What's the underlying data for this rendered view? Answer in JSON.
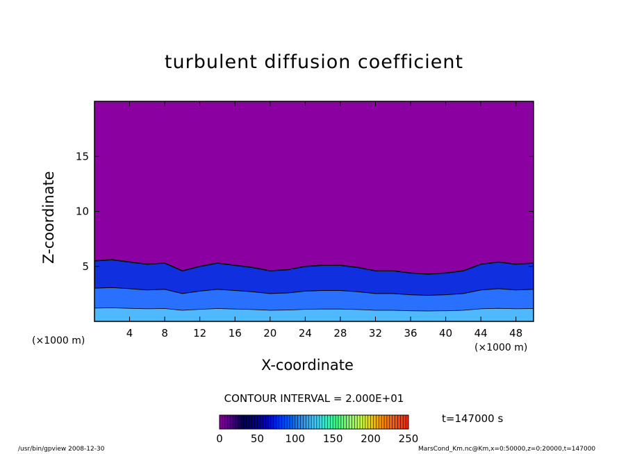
{
  "chart_data": {
    "type": "heatmap",
    "title": "turbulent diffusion coefficient",
    "xlabel": "X-coordinate",
    "ylabel": "Z-coordinate",
    "xunit": "(×1000 m)",
    "xlim": [
      0,
      50
    ],
    "ylim": [
      0,
      20
    ],
    "xticks": [
      4,
      8,
      12,
      16,
      20,
      24,
      28,
      32,
      36,
      40,
      44,
      48
    ],
    "yticks": [
      5,
      10,
      15
    ],
    "contour_interval": "CONTOUR INTERVAL = 2.000E+01",
    "colorbar": {
      "ticks": [
        0,
        50,
        100,
        150,
        200,
        250
      ],
      "range": [
        0,
        250
      ],
      "colors": [
        "#8a00a0",
        "#000050",
        "#0000c8",
        "#0060ff",
        "#40c8ff",
        "#40ff80",
        "#c8ff40",
        "#ff8000",
        "#ff2000"
      ]
    },
    "background_color": "#8a00a0",
    "time_label": "t=147000 s",
    "mixed_layer_top_km": [
      {
        "x": 0,
        "z": 5.5
      },
      {
        "x": 2,
        "z": 5.6
      },
      {
        "x": 4,
        "z": 5.4
      },
      {
        "x": 6,
        "z": 5.2
      },
      {
        "x": 8,
        "z": 5.3
      },
      {
        "x": 10,
        "z": 4.6
      },
      {
        "x": 12,
        "z": 5.0
      },
      {
        "x": 14,
        "z": 5.3
      },
      {
        "x": 16,
        "z": 5.1
      },
      {
        "x": 18,
        "z": 4.9
      },
      {
        "x": 20,
        "z": 4.6
      },
      {
        "x": 22,
        "z": 4.7
      },
      {
        "x": 24,
        "z": 5.0
      },
      {
        "x": 26,
        "z": 5.1
      },
      {
        "x": 28,
        "z": 5.1
      },
      {
        "x": 30,
        "z": 4.9
      },
      {
        "x": 32,
        "z": 4.6
      },
      {
        "x": 34,
        "z": 4.6
      },
      {
        "x": 36,
        "z": 4.4
      },
      {
        "x": 38,
        "z": 4.3
      },
      {
        "x": 40,
        "z": 4.4
      },
      {
        "x": 42,
        "z": 4.6
      },
      {
        "x": 44,
        "z": 5.2
      },
      {
        "x": 46,
        "z": 5.4
      },
      {
        "x": 48,
        "z": 5.2
      },
      {
        "x": 50,
        "z": 5.3
      }
    ]
  },
  "footer": {
    "left": "/usr/bin/gpview   2008-12-30",
    "right": "MarsCond_Km.nc@Km,x=0:50000,z=0:20000,t=147000"
  }
}
